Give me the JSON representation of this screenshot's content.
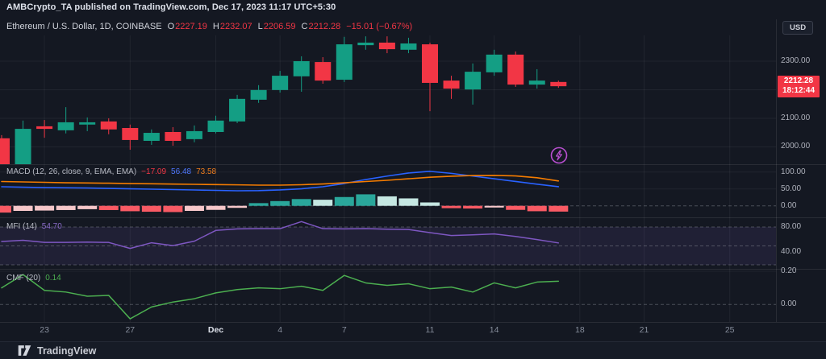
{
  "publish_header": {
    "text": "AMBCrypto_TA published on TradingView.com, Dec 17, 2023 11:17 UTC+5:30"
  },
  "symbol_row": {
    "title": "Ethereum / U.S. Dollar, 1D, COINBASE",
    "ohlc": [
      {
        "label": "O",
        "value": "2227.19"
      },
      {
        "label": "H",
        "value": "2232.07"
      },
      {
        "label": "L",
        "value": "2206.59"
      },
      {
        "label": "C",
        "value": "2212.28"
      }
    ],
    "change": "−15.01 (−0.67%)"
  },
  "toolbar": {
    "currency_label": "USD"
  },
  "price_tag": {
    "price": "2212.28",
    "countdown": "18:12:44"
  },
  "footer": {
    "brand": "TradingView"
  },
  "icons": {
    "flash": "lightning-bolt-in-circle",
    "logo": "tradingview-17-mark"
  },
  "colors": {
    "background": "#141822",
    "up": "#149e84",
    "down": "#f23645",
    "macd_line": "#2962ff",
    "signal_line": "#f57c00",
    "hist_pos": "#2aa79b",
    "hist_pos_faded": "#c5e7e2",
    "hist_neg": "#f95a64",
    "hist_neg_faded": "#f6c7ca",
    "mfi_line": "#7e57c2",
    "mfi_band": "rgba(126,87,194,0.12)",
    "cmf_line": "#4caf50",
    "tag_bg": "#f23645",
    "grid": "rgba(255,255,255,0.055)",
    "level_dash": "rgba(150,153,163,0.42)",
    "separator": "rgba(255,255,255,0.09)"
  },
  "time_axis": {
    "ticks": [
      {
        "label": "23",
        "index": 2
      },
      {
        "label": "27",
        "index": 6
      },
      {
        "label": "Dec",
        "index": 10,
        "major": true
      },
      {
        "label": "4",
        "index": 13
      },
      {
        "label": "7",
        "index": 16
      },
      {
        "label": "11",
        "index": 20
      },
      {
        "label": "14",
        "index": 23
      },
      {
        "label": "18",
        "index": 27
      },
      {
        "label": "21",
        "index": 30
      },
      {
        "label": "25",
        "index": 34
      }
    ]
  },
  "chart_data": [
    {
      "type": "candlestick",
      "pane": "price",
      "title": "Ethereum / U.S. Dollar, 1D, COINBASE",
      "ylim": [
        1935,
        2420
      ],
      "grid_values": [
        2300,
        2200,
        2100,
        2000
      ],
      "axis_labels": [
        {
          "text": "2300.00",
          "value": 2300
        },
        {
          "text": "2100.00",
          "value": 2100
        },
        {
          "text": "2000.00",
          "value": 2000
        }
      ],
      "last_price": 2212.28,
      "dates": [
        "Nov 21",
        "Nov 22",
        "Nov 23",
        "Nov 24",
        "Nov 25",
        "Nov 26",
        "Nov 27",
        "Nov 28",
        "Nov 29",
        "Nov 30",
        "Dec 1",
        "Dec 2",
        "Dec 3",
        "Dec 4",
        "Dec 5",
        "Dec 6",
        "Dec 7",
        "Dec 8",
        "Dec 9",
        "Dec 10",
        "Dec 11",
        "Dec 12",
        "Dec 13",
        "Dec 14",
        "Dec 15",
        "Dec 16",
        "Dec 17"
      ],
      "ohlc": [
        [
          2030,
          2041,
          1939,
          1939
        ],
        [
          1939,
          2092,
          1939,
          2063
        ],
        [
          2072,
          2094,
          2032,
          2063
        ],
        [
          2058,
          2139,
          2047,
          2086
        ],
        [
          2078,
          2103,
          2055,
          2086
        ],
        [
          2089,
          2100,
          2044,
          2061
        ],
        [
          2066,
          2078,
          1990,
          2024
        ],
        [
          2021,
          2061,
          2007,
          2049
        ],
        [
          2052,
          2069,
          2004,
          2021
        ],
        [
          2027,
          2075,
          2016,
          2055
        ],
        [
          2052,
          2109,
          2047,
          2092
        ],
        [
          2089,
          2182,
          2083,
          2168
        ],
        [
          2165,
          2216,
          2154,
          2199
        ],
        [
          2199,
          2266,
          2190,
          2249
        ],
        [
          2247,
          2317,
          2193,
          2300
        ],
        [
          2297,
          2314,
          2221,
          2232
        ],
        [
          2235,
          2385,
          2227,
          2359
        ],
        [
          2356,
          2387,
          2340,
          2365
        ],
        [
          2365,
          2387,
          2328,
          2342
        ],
        [
          2340,
          2382,
          2328,
          2362
        ],
        [
          2359,
          2365,
          2125,
          2224
        ],
        [
          2232,
          2249,
          2168,
          2204
        ],
        [
          2201,
          2292,
          2148,
          2263
        ],
        [
          2261,
          2340,
          2249,
          2323
        ],
        [
          2323,
          2334,
          2210,
          2218
        ],
        [
          2218,
          2272,
          2204,
          2232
        ],
        [
          2227.19,
          2232.07,
          2206.59,
          2212.28
        ]
      ]
    },
    {
      "type": "bar",
      "pane": "macd",
      "legend": {
        "title": "MACD (12, 26, close, 9, EMA, EMA)",
        "hist_value": "−17.09",
        "macd_value": "56.48",
        "signal_value": "73.58"
      },
      "ylim": [
        -35,
        120
      ],
      "grid_values": [
        100,
        50
      ],
      "zero_level": 0,
      "axis_labels": [
        {
          "text": "100.00",
          "value": 100
        },
        {
          "text": "50.00",
          "value": 50
        },
        {
          "text": "0.00",
          "value": 0
        }
      ],
      "histogram": [
        -20,
        -15,
        -14,
        -12.5,
        -10,
        -12.5,
        -16,
        -17.5,
        -18.5,
        -15,
        -12,
        -6,
        8,
        14,
        20,
        18,
        26,
        34,
        28,
        22,
        10,
        -7,
        -8,
        -5,
        -12,
        -16,
        -17.09
      ],
      "series": [
        {
          "name": "MACD",
          "values": [
            56.4,
            55.2,
            54,
            53.3,
            52.6,
            51.6,
            50.4,
            49.3,
            48.1,
            46.9,
            45.7,
            44.5,
            45,
            47,
            50.4,
            56.4,
            65.9,
            77.8,
            88,
            97,
            102,
            96,
            88,
            80,
            72,
            64,
            56.48
          ]
        },
        {
          "name": "Signal",
          "values": [
            71.9,
            70.7,
            69.5,
            68.3,
            67.6,
            66.9,
            65.9,
            65.2,
            64.3,
            63.6,
            62.8,
            62.1,
            61.2,
            61.2,
            62.4,
            64.7,
            68.3,
            71.9,
            75.5,
            80,
            84.5,
            87.5,
            89.5,
            90,
            88.5,
            83,
            73.58
          ]
        }
      ]
    },
    {
      "type": "line",
      "pane": "mfi",
      "legend": {
        "title": "MFI (14)",
        "value": "54.70"
      },
      "ylim": [
        10,
        95
      ],
      "levels": [
        80,
        50,
        20
      ],
      "band": [
        20,
        80
      ],
      "axis_labels": [
        {
          "text": "80.00",
          "value": 80
        },
        {
          "text": "40.00",
          "value": 40
        }
      ],
      "values": [
        57,
        59,
        55.5,
        55.5,
        56,
        55.5,
        46,
        55,
        50.5,
        57.5,
        74.5,
        77,
        77.4,
        77.4,
        88.5,
        77.4,
        77,
        77.4,
        76.5,
        76,
        71,
        66.5,
        67.5,
        69,
        65,
        60,
        54.7
      ]
    },
    {
      "type": "line",
      "pane": "cmf",
      "legend": {
        "title": "CMF (20)",
        "value": "0.14"
      },
      "ylim": [
        -0.12,
        0.22
      ],
      "grid_values": [
        0.2
      ],
      "levels": [
        0
      ],
      "axis_labels": [
        {
          "text": "0.20",
          "value": 0.2
        },
        {
          "text": "0.00",
          "value": 0
        }
      ],
      "values": [
        0.1,
        0.18,
        0.085,
        0.075,
        0.05,
        0.055,
        -0.086,
        -0.015,
        0.015,
        0.035,
        0.07,
        0.09,
        0.1,
        0.095,
        0.11,
        0.085,
        0.175,
        0.13,
        0.115,
        0.125,
        0.095,
        0.105,
        0.075,
        0.13,
        0.1,
        0.135,
        0.14
      ]
    }
  ]
}
